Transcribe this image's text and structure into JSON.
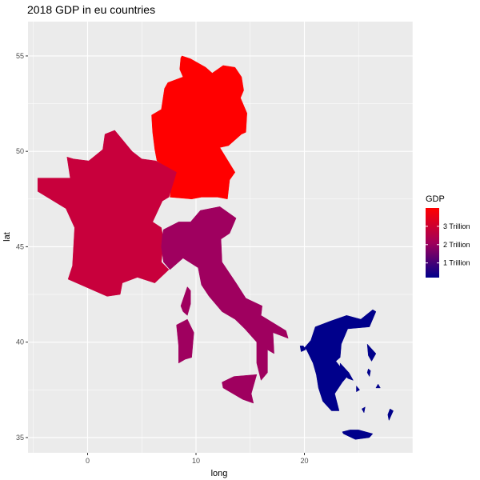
{
  "chart_data": {
    "type": "map",
    "title": "2018 GDP in eu countries",
    "xlabel": "long",
    "ylabel": "lat",
    "xlim": [
      -5.5,
      30
    ],
    "ylim": [
      34.2,
      56.8
    ],
    "x_ticks": [
      0,
      10,
      20
    ],
    "y_ticks": [
      35,
      40,
      45,
      50,
      55
    ],
    "grid": true,
    "legend": {
      "title": "GDP",
      "position": "right",
      "color_low": "#00008B",
      "color_mid": "#A0005A",
      "color_high": "#FF0000",
      "breaks": [
        {
          "label": "1 Trillion",
          "value": 1.0
        },
        {
          "label": "2 Trillion",
          "value": 2.0
        },
        {
          "label": "3 Trillion",
          "value": 3.0
        }
      ],
      "range": [
        0.2,
        4.0
      ]
    },
    "regions": [
      {
        "name": "Germany",
        "gdp_trillion": 3.95,
        "color": "#FF0000"
      },
      {
        "name": "France",
        "gdp_trillion": 2.78,
        "color": "#C8003C"
      },
      {
        "name": "Italy",
        "gdp_trillion": 2.08,
        "color": "#9F005F"
      },
      {
        "name": "Greece",
        "gdp_trillion": 0.22,
        "color": "#00008B"
      }
    ]
  }
}
